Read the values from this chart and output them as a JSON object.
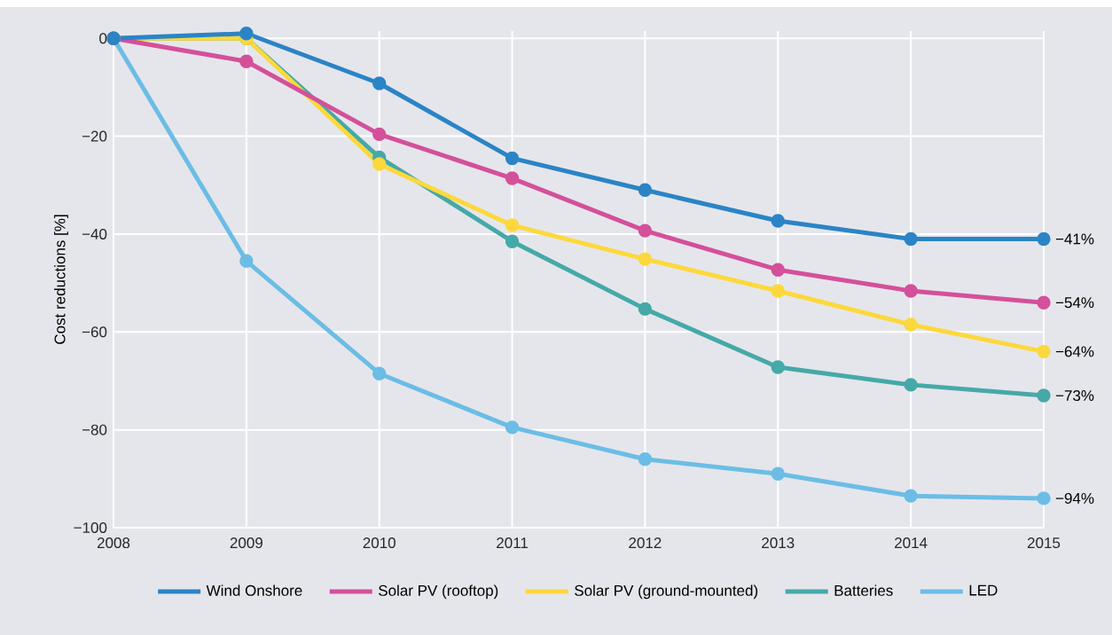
{
  "chart_data": {
    "type": "line",
    "ylabel": "Cost reductions [%]",
    "x": [
      2008,
      2009,
      2010,
      2011,
      2012,
      2013,
      2014,
      2015
    ],
    "xlim": [
      2008,
      2015
    ],
    "xticks": [
      2008,
      2009,
      2010,
      2011,
      2012,
      2013,
      2014,
      2015
    ],
    "ylim": [
      -100,
      1.5
    ],
    "yticks": [
      {
        "value": -100,
        "label": "−100"
      },
      {
        "value": -80,
        "label": "−80"
      },
      {
        "value": -60,
        "label": "−60"
      },
      {
        "value": -40,
        "label": "−40"
      },
      {
        "value": -20,
        "label": "−20"
      },
      0
    ],
    "grid": true,
    "legend": "bottom",
    "marker": "circle",
    "line_style": "solid",
    "series": [
      {
        "name": "Wind Onshore",
        "color": "#2a84c6",
        "values": [
          0,
          1,
          -9.2,
          -24.5,
          -31,
          -37.3,
          -41,
          -41
        ],
        "value_labels": [
          null,
          null,
          null,
          null,
          null,
          null,
          null,
          "−41%"
        ]
      },
      {
        "name": "Solar PV (rooftop)",
        "color": "#d4509a",
        "values": [
          0,
          -4.7,
          -19.6,
          -28.6,
          -39.3,
          -47.3,
          -51.6,
          -54
        ],
        "value_labels": [
          null,
          null,
          null,
          null,
          null,
          null,
          null,
          "−54%"
        ]
      },
      {
        "name": "Solar PV (ground-mounted)",
        "color": "#fdd83c",
        "values": [
          0,
          0,
          -25.7,
          -38.2,
          -45.1,
          -51.6,
          -58.5,
          -64
        ],
        "value_labels": [
          null,
          null,
          null,
          null,
          null,
          null,
          null,
          "−64%"
        ]
      },
      {
        "name": "Batteries",
        "color": "#45a9a8",
        "values": [
          0,
          0,
          -24.3,
          -41.5,
          -55.3,
          -67.2,
          -70.8,
          -73
        ],
        "value_labels": [
          null,
          null,
          null,
          null,
          null,
          null,
          null,
          "−73%"
        ]
      },
      {
        "name": "LED",
        "color": "#6bbde6",
        "values": [
          0,
          -45.5,
          -68.5,
          -79.5,
          -86,
          -89,
          -93.5,
          -94
        ],
        "value_labels": [
          null,
          null,
          null,
          null,
          null,
          null,
          null,
          "−94%"
        ]
      }
    ]
  }
}
